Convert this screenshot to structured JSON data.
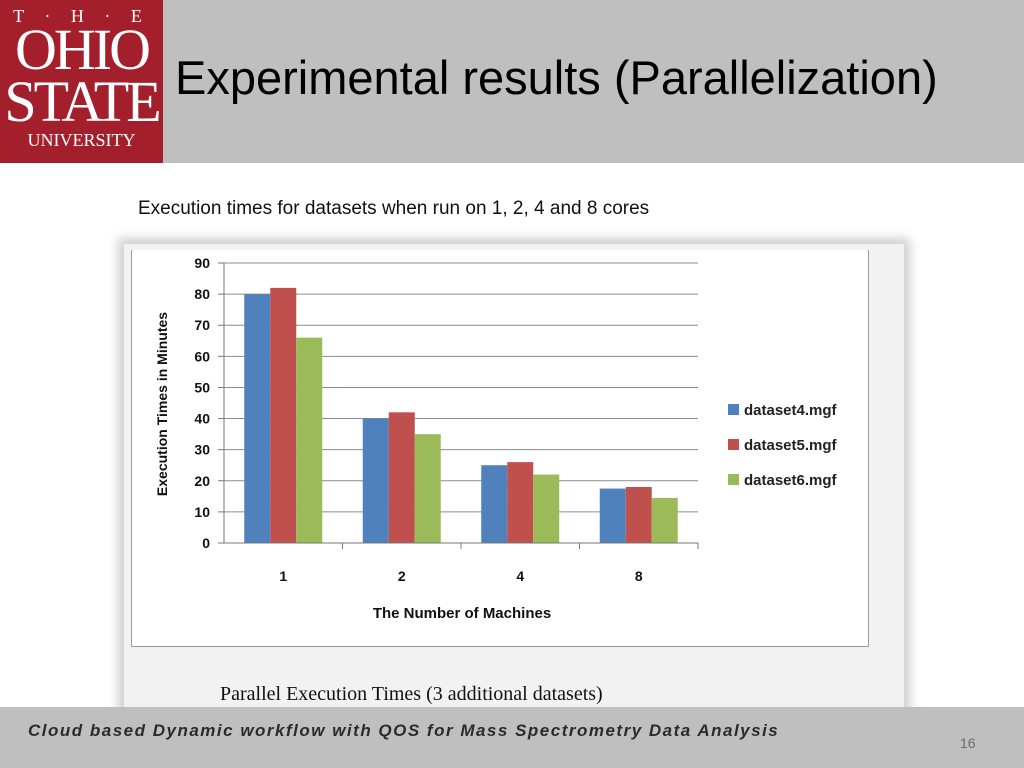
{
  "logo": {
    "line1": "T · H · E",
    "line2": "OHIO",
    "line3": "STATE",
    "line4": "UNIVERSITY"
  },
  "slide_title": "Experimental results (Parallelization)",
  "subtitle": "Execution times for datasets when run on 1, 2, 4 and 8 cores",
  "figure_caption": "Parallel Execution Times (3 additional datasets)",
  "footer_text": "Cloud based Dynamic workflow with QOS for Mass Spectrometry Data Analysis",
  "page_number": "16",
  "colors": {
    "header_bg": "#bfbfbf",
    "logo_bg": "#a31f2c"
  },
  "chart_data": {
    "type": "bar",
    "categories": [
      "1",
      "2",
      "4",
      "8"
    ],
    "series": [
      {
        "name": "dataset4.mgf",
        "color": "#4f81bd",
        "values": [
          80,
          40,
          25,
          17.5
        ]
      },
      {
        "name": "dataset5.mgf",
        "color": "#c0504d",
        "values": [
          82,
          42,
          26,
          18
        ]
      },
      {
        "name": "dataset6.mgf",
        "color": "#9bbb59",
        "values": [
          66,
          35,
          22,
          14.5
        ]
      }
    ],
    "yticks": [
      "0",
      "10",
      "20",
      "30",
      "40",
      "50",
      "60",
      "70",
      "80",
      "90"
    ],
    "xlabel": "The Number of Machines",
    "ylabel": "Execution Times in Minutes",
    "ylim": [
      0,
      90
    ],
    "grid": true,
    "legend_position": "right"
  }
}
